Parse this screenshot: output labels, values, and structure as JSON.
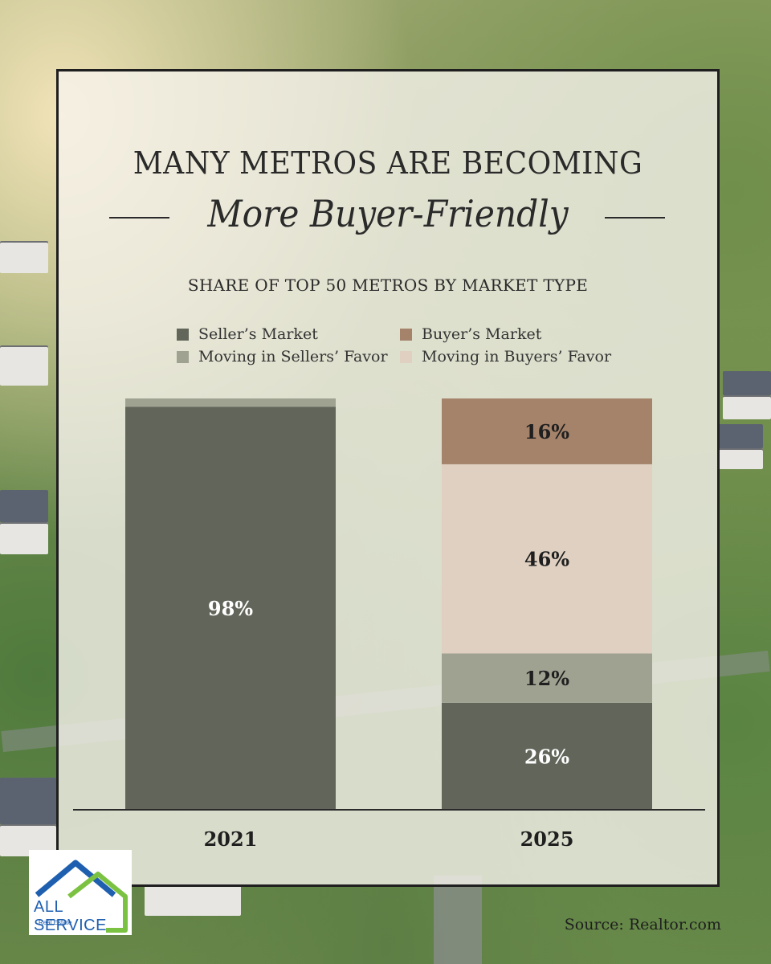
{
  "header": {
    "title_line1": "MANY METROS ARE BECOMING",
    "title_line2": "More Buyer-Friendly",
    "subtitle": "SHARE OF  TOP 50 METROS BY MARKET  TYPE"
  },
  "legend": [
    {
      "label": "Seller’s Market",
      "color": "#62665a"
    },
    {
      "label": "Buyer’s Market",
      "color": "#a5836b"
    },
    {
      "label": "Moving in Sellers’ Favor",
      "color": "#9fa291"
    },
    {
      "label": "Moving in Buyers’ Favor",
      "color": "#dfd0c1"
    }
  ],
  "chart_data": {
    "type": "bar",
    "stacked": true,
    "categories": [
      "2021",
      "2025"
    ],
    "series": [
      {
        "name": "Seller’s Market",
        "values": [
          98,
          26
        ],
        "labels": [
          "98%",
          "26%"
        ],
        "color": "#62665a"
      },
      {
        "name": "Moving in Sellers’ Favor",
        "values": [
          2,
          12
        ],
        "labels": [
          "",
          "12%"
        ],
        "color": "#9fa291"
      },
      {
        "name": "Moving in Buyers’ Favor",
        "values": [
          0,
          46
        ],
        "labels": [
          "",
          "46%"
        ],
        "color": "#dfd0c1"
      },
      {
        "name": "Buyer’s Market",
        "values": [
          0,
          16
        ],
        "labels": [
          "",
          "16%"
        ],
        "color": "#a5836b"
      }
    ],
    "ylim": [
      0,
      100
    ],
    "legend_position": "top"
  },
  "footer": {
    "source": "Source: Realtor.com",
    "logo_text": "ALL SERVICE",
    "logo_subtext": "Real Estate"
  }
}
